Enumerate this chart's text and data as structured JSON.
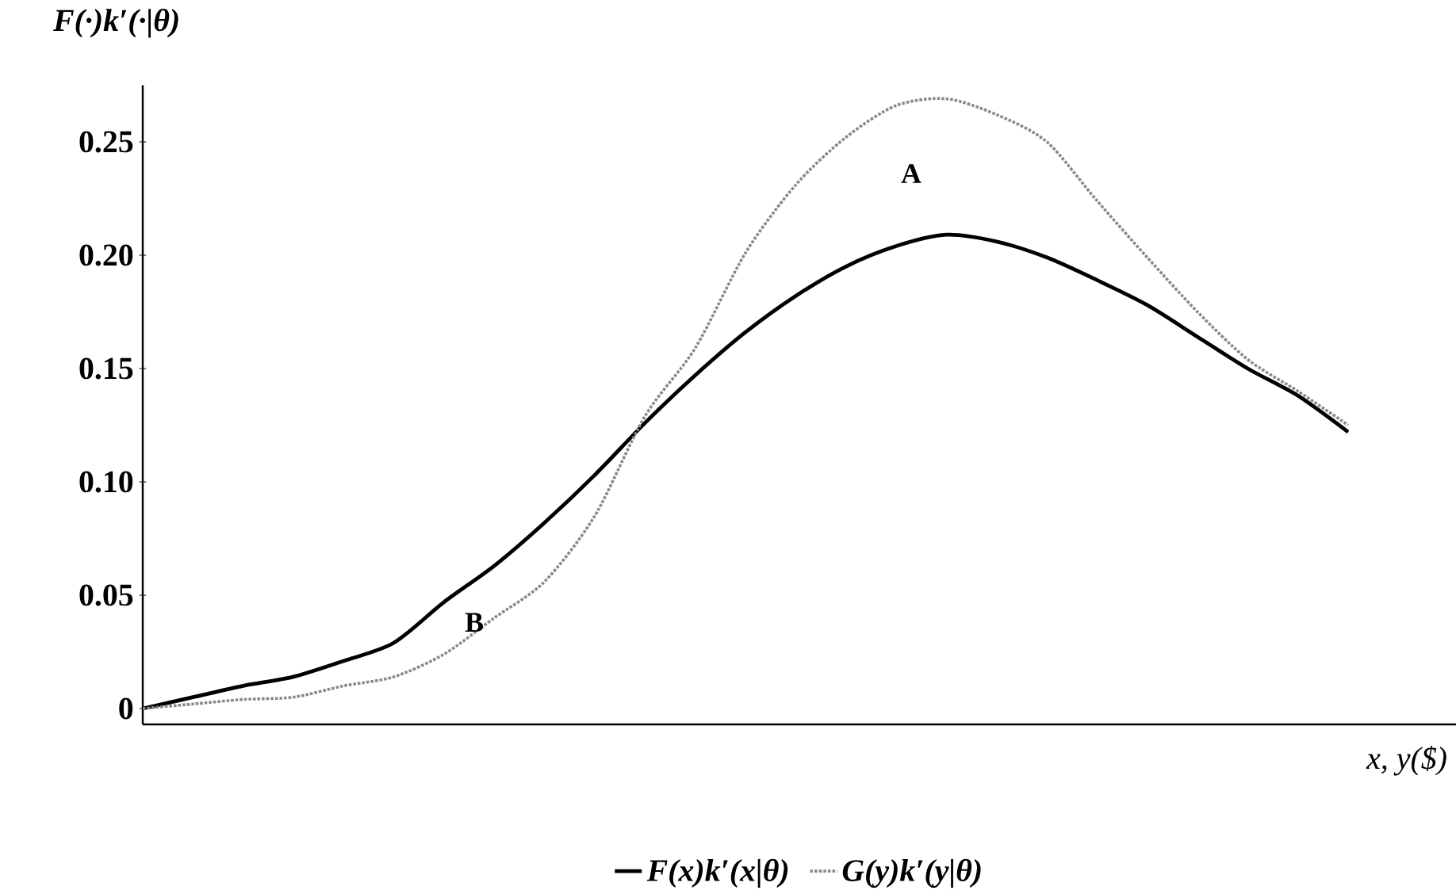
{
  "chart_data": {
    "type": "line",
    "ylabel": "F(·)k′(·|θ)",
    "xlabel": "x, y($)",
    "categories": [
      null,
      null,
      null,
      null,
      null,
      null,
      null,
      null,
      null,
      null,
      null,
      null,
      null,
      null,
      null,
      null,
      null,
      null,
      null,
      null,
      null,
      null,
      null,
      null,
      null
    ],
    "series": [
      {
        "name": "F(x)k′(x|θ)",
        "color": "#000000",
        "line_style": "solid",
        "values": [
          0.0,
          0.005,
          0.01,
          0.014,
          0.021,
          0.029,
          0.047,
          0.063,
          0.082,
          0.103,
          0.126,
          0.147,
          0.166,
          0.182,
          0.195,
          0.204,
          0.209,
          0.206,
          0.199,
          0.189,
          0.178,
          0.164,
          0.15,
          0.138,
          0.122
        ]
      },
      {
        "name": "G(y)k′(y|θ)",
        "color": "#888888",
        "line_style": "dotted",
        "values": [
          0.0,
          0.002,
          0.004,
          0.005,
          0.01,
          0.014,
          0.024,
          0.04,
          0.056,
          0.085,
          0.129,
          0.159,
          0.201,
          0.231,
          0.252,
          0.266,
          0.269,
          0.262,
          0.25,
          0.224,
          0.199,
          0.175,
          0.154,
          0.14,
          0.125
        ]
      }
    ],
    "ylim": [
      -0.007,
      0.275
    ],
    "yticks": [
      0,
      {
        "value": 0.05,
        "label": "0.05"
      },
      {
        "value": 0.1,
        "label": "0.10"
      },
      {
        "value": 0.15,
        "label": "0.15"
      },
      {
        "value": 0.2,
        "label": "0.20"
      },
      {
        "value": 0.25,
        "label": "0.25"
      }
    ],
    "tick_labels": "y",
    "grid": false,
    "legend": "bottom",
    "marker": "none",
    "annotations": [
      "A",
      "B"
    ]
  }
}
